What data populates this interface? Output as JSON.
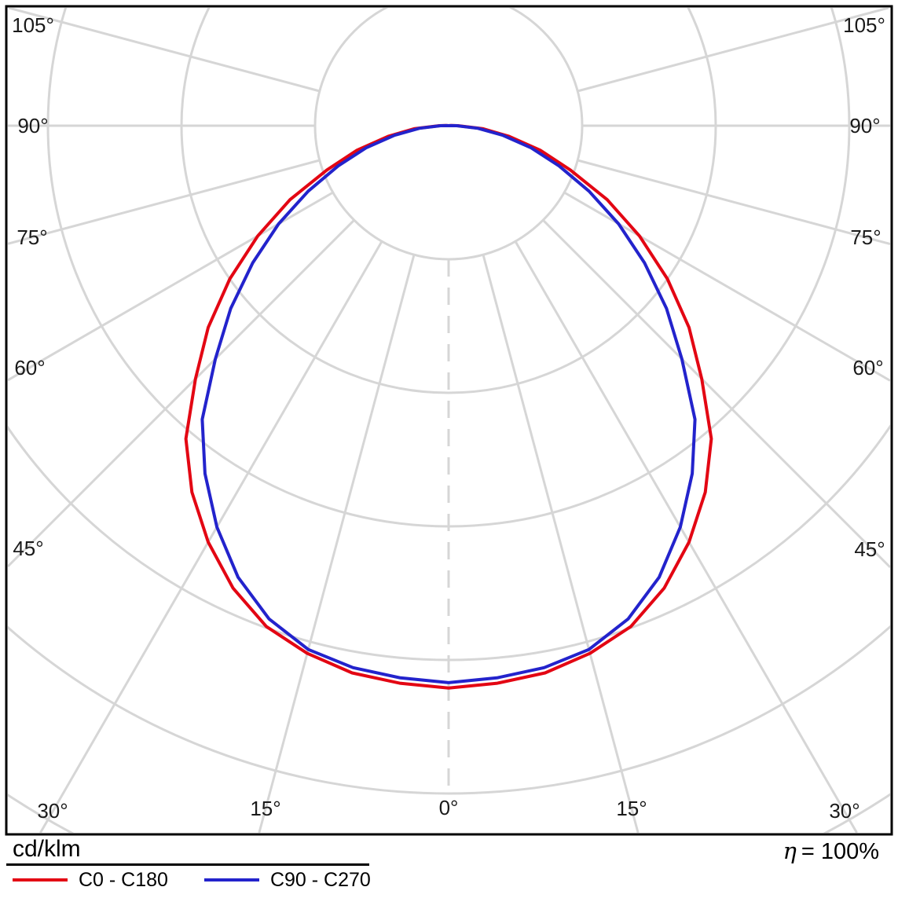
{
  "chart_data": {
    "type": "line",
    "subtype": "polar-photometric-intensity",
    "unit": "cd/klm",
    "grid": true,
    "legend_position": "bottom-left",
    "angle_step_deg": 15,
    "max_angle_deg": 105,
    "angle_labels": [
      "0°",
      "15°",
      "30°",
      "45°",
      "60°",
      "75°",
      "90°",
      "105°"
    ],
    "ring_values": [
      100,
      200,
      300,
      400,
      500,
      600
    ],
    "symmetric": true,
    "gamma_deg": [
      0,
      5,
      10,
      15,
      20,
      25,
      30,
      35,
      40,
      45,
      50,
      55,
      60,
      65,
      70,
      75,
      80,
      85,
      90,
      95,
      100
    ],
    "series": [
      {
        "name": "C0 - C180",
        "color": "#e30613",
        "values": [
          421,
          419,
          416,
          409,
          399,
          382,
          360,
          335,
          306,
          268,
          235,
          200,
          165,
          131,
          97,
          71,
          46,
          26,
          7,
          2,
          0
        ]
      },
      {
        "name": "C90 - C270",
        "color": "#2323cc",
        "values": [
          417,
          415,
          412,
          406,
          393,
          373,
          347,
          318,
          287,
          247,
          213,
          179,
          147,
          116,
          88,
          64,
          41,
          22,
          6,
          1,
          0
        ]
      }
    ]
  },
  "footer": {
    "unit_label": "cd/klm",
    "efficiency_symbol": "η",
    "efficiency_value": "=  100%"
  },
  "legend": [
    {
      "label": "C0 - C180",
      "color": "#e30613"
    },
    {
      "label": "C90 - C270",
      "color": "#2323cc"
    }
  ]
}
